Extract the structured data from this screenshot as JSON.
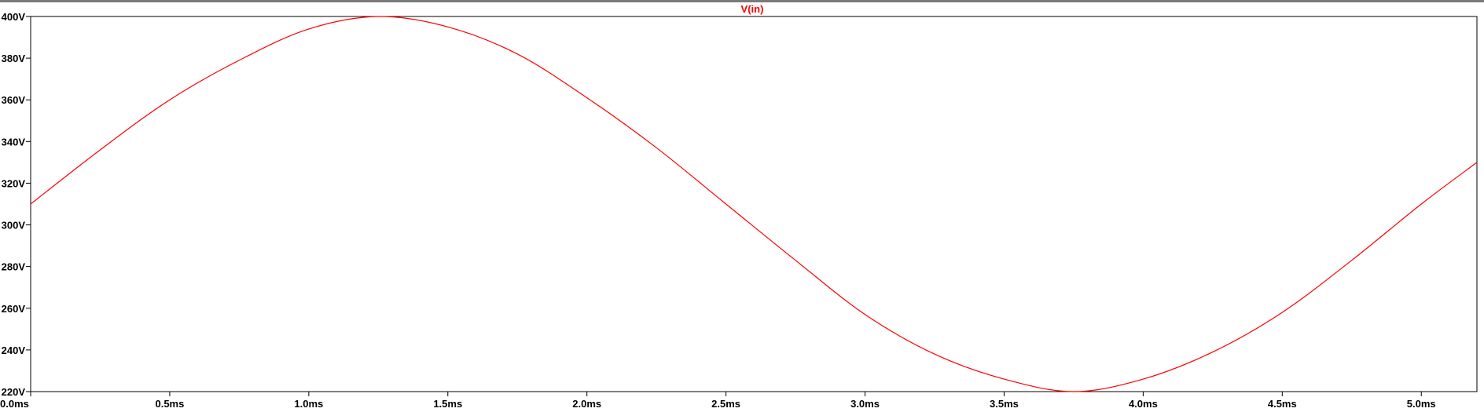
{
  "chart_data": {
    "type": "line",
    "title": "V(in)",
    "xlabel": "",
    "ylabel": "",
    "xlim": [
      0,
      5.2
    ],
    "ylim": [
      220,
      400
    ],
    "x_unit": "ms",
    "y_unit": "V",
    "x_ticks": [
      "0.0ms",
      "0.5ms",
      "1.0ms",
      "1.5ms",
      "2.0ms",
      "2.5ms",
      "3.0ms",
      "3.5ms",
      "4.0ms",
      "4.5ms",
      "5.0ms"
    ],
    "x_tick_values": [
      0,
      0.5,
      1.0,
      1.5,
      2.0,
      2.5,
      3.0,
      3.5,
      4.0,
      4.5,
      5.0
    ],
    "y_ticks": [
      "220V",
      "240V",
      "260V",
      "280V",
      "300V",
      "320V",
      "340V",
      "360V",
      "380V",
      "400V"
    ],
    "y_tick_values": [
      220,
      240,
      260,
      280,
      300,
      320,
      340,
      360,
      380,
      400
    ],
    "grid": false,
    "series": [
      {
        "name": "V(in)",
        "color": "#ff0000",
        "x": [
          0.0,
          0.25,
          0.5,
          0.75,
          1.0,
          1.25,
          1.5,
          1.75,
          2.0,
          2.25,
          2.5,
          2.75,
          3.0,
          3.25,
          3.5,
          3.75,
          4.0,
          4.25,
          4.5,
          4.75,
          5.0,
          5.2
        ],
        "y": [
          310,
          336,
          360,
          379,
          394,
          400,
          395,
          382,
          361,
          337,
          310,
          283,
          257,
          238,
          226,
          220,
          226,
          239,
          258,
          283,
          310,
          330
        ]
      }
    ]
  }
}
